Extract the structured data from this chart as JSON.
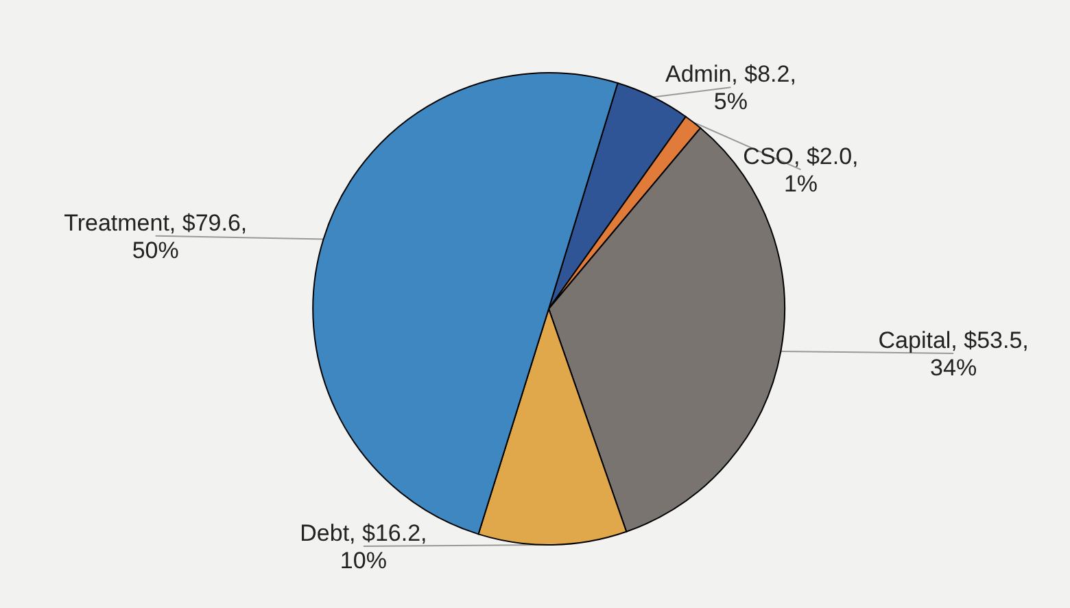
{
  "chart_data": {
    "type": "pie",
    "categories": [
      "Admin",
      "CSO",
      "Capital",
      "Debt",
      "Treatment"
    ],
    "values": [
      8.2,
      2.0,
      53.5,
      16.2,
      79.6
    ],
    "colors": [
      "#2f5597",
      "#e07b39",
      "#7a7470",
      "#e0a84a",
      "#3f87c0"
    ],
    "value_labels": [
      "$8.2, 5%",
      "$2.0, 1%",
      "$53.5, 34%",
      "$16.2, 10%",
      "$79.6, 50%"
    ]
  }
}
